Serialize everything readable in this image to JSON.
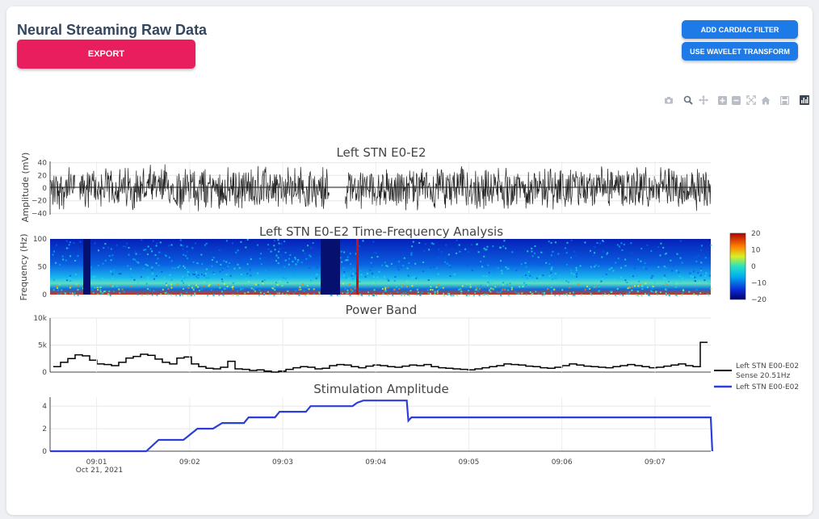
{
  "header": {
    "title": "Neural Streaming Raw Data",
    "export_label": "EXPORT",
    "cardiac_label": "ADD CARDIAC FILTER",
    "wavelet_label": "USE WAVELET TRANSFORM"
  },
  "modebar": {
    "icons": [
      "camera-icon",
      "zoom-icon",
      "pan-icon",
      "zoom-in-icon",
      "zoom-out-icon",
      "autoscale-icon",
      "reset-home-icon",
      "save-icon",
      "plotly-logo-icon"
    ]
  },
  "colors": {
    "signal": "#222222",
    "stim_line": "#2b3fd8",
    "export_btn": "#e91e5e",
    "action_btn": "#1e7ae6"
  },
  "chart_data": [
    {
      "type": "line",
      "title": "Left STN E0-E2",
      "ylabel": "Amplitude (mV)",
      "ylim": [
        -42,
        42
      ],
      "yticks": [
        "40",
        "20",
        "0",
        "−20",
        "−40"
      ],
      "gaps": [
        [
          "09:00:46",
          "09:00:49"
        ],
        [
          "09:03:30",
          "09:03:40"
        ]
      ],
      "envelope_mV": 30
    },
    {
      "type": "heatmap",
      "title": "Left STN E0-E2 Time-Frequency Analysis",
      "ylabel": "Frequency (Hz)",
      "ylim": [
        0,
        100
      ],
      "yticks": [
        "100",
        "50",
        "0"
      ],
      "colorbar": {
        "min": -20,
        "max": 20,
        "ticks": [
          "20",
          "10",
          "0",
          "−10",
          "−20"
        ],
        "colorscale": "jet"
      }
    },
    {
      "type": "line",
      "title": "Power Band",
      "ylim": [
        0,
        10000
      ],
      "yticks": [
        "10k",
        "5k",
        "0"
      ],
      "series": [
        {
          "name": "Left STN E00-E02 Sense 20.51Hz",
          "legend": [
            "Left STN E00-E02",
            "Sense 20.51Hz"
          ],
          "values": [
            1000,
            1800,
            2500,
            3200,
            3000,
            2200,
            1500,
            1400,
            1200,
            1800,
            2600,
            2900,
            3300,
            3100,
            2400,
            1800,
            1500,
            2600,
            2800,
            1500,
            1000,
            700,
            600,
            900,
            2000,
            600,
            500,
            300,
            400,
            200,
            0,
            200,
            500,
            800,
            1000,
            900,
            600,
            700,
            1200,
            1400,
            1300,
            1000,
            800,
            1100,
            1300,
            1200,
            1000,
            900,
            1100,
            1300,
            1200,
            1400,
            1000,
            800,
            700,
            600,
            500,
            400,
            600,
            800,
            1000,
            1200,
            1500,
            1400,
            1300,
            1100,
            1000,
            800,
            700,
            900,
            1200,
            1500,
            1300,
            1100,
            1000,
            900,
            800,
            1000,
            1200,
            1400,
            1200,
            1000,
            800,
            900,
            1100,
            1300,
            1500,
            1200,
            1000,
            5500
          ]
        }
      ]
    },
    {
      "type": "line",
      "title": "Stimulation Amplitude",
      "ylim": [
        0,
        4.8
      ],
      "yticks": [
        "4",
        "2",
        "0"
      ],
      "xticks": [
        "09:01",
        "09:02",
        "09:03",
        "09:04",
        "09:05",
        "09:06",
        "09:07"
      ],
      "xdate": "Oct 21, 2021",
      "series": [
        {
          "name": "Left STN E00-E02",
          "points": [
            [
              "09:00:30",
              0
            ],
            [
              "09:01:32",
              0
            ],
            [
              "09:01:40",
              1.0
            ],
            [
              "09:01:56",
              1.0
            ],
            [
              "09:02:05",
              2.0
            ],
            [
              "09:02:15",
              2.0
            ],
            [
              "09:02:21",
              2.5
            ],
            [
              "09:02:35",
              2.5
            ],
            [
              "09:02:38",
              3.0
            ],
            [
              "09:02:55",
              3.0
            ],
            [
              "09:02:58",
              3.5
            ],
            [
              "09:03:15",
              3.5
            ],
            [
              "09:03:18",
              4.0
            ],
            [
              "09:03:45",
              4.0
            ],
            [
              "09:03:48",
              4.3
            ],
            [
              "09:03:52",
              4.5
            ],
            [
              "09:04:20",
              4.5
            ],
            [
              "09:04:21",
              2.7
            ],
            [
              "09:04:23",
              3.0
            ],
            [
              "09:07:36",
              3.0
            ],
            [
              "09:07:37",
              0
            ]
          ]
        }
      ]
    }
  ]
}
